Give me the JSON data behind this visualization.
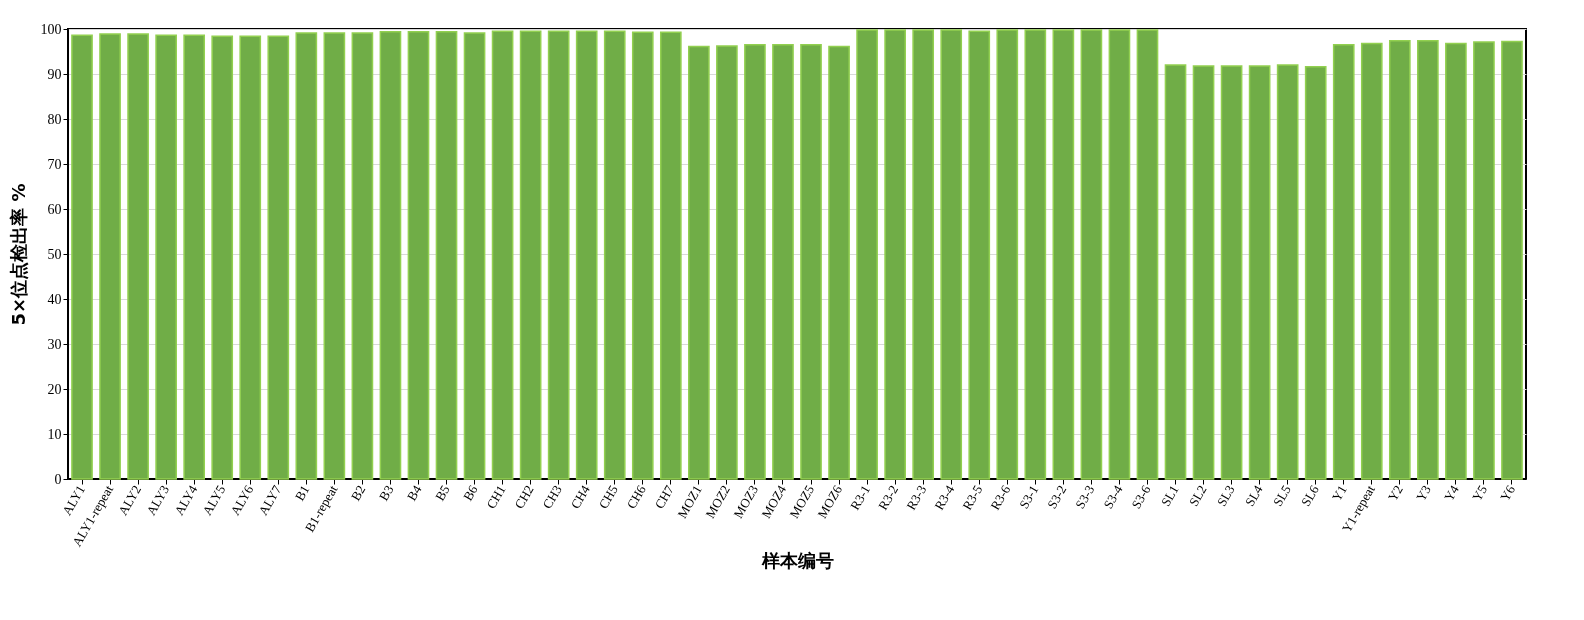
{
  "chart_data": {
    "type": "bar",
    "xlabel": "样本编号",
    "ylabel": "5×位点检出率 %",
    "categories": [
      "ALY1",
      "ALY1-repeat",
      "ALY2",
      "ALY3",
      "ALY4",
      "ALY5",
      "ALY6",
      "ALY7",
      "B1",
      "B1-repeat",
      "B2",
      "B3",
      "B4",
      "B5",
      "B6",
      "CH1",
      "CH2",
      "CH3",
      "CH4",
      "CH5",
      "CH6",
      "CH7",
      "MOZ1",
      "MOZ2",
      "MOZ3",
      "MOZ4",
      "MOZ5",
      "MOZ6",
      "R3-1",
      "R3-2",
      "R3-3",
      "R3-4",
      "R3-5",
      "R3-6",
      "S3-1",
      "S3-2",
      "S3-3",
      "S3-4",
      "S3-6",
      "SL1",
      "SL2",
      "SL3",
      "SL4",
      "SL5",
      "SL6",
      "Y1",
      "Y1-repeat",
      "Y2",
      "Y3",
      "Y4",
      "Y5",
      "Y6"
    ],
    "values": [
      98.6,
      98.9,
      98.9,
      98.6,
      98.6,
      98.4,
      98.4,
      98.4,
      99.1,
      99.1,
      99.1,
      99.4,
      99.4,
      99.4,
      99.1,
      99.5,
      99.5,
      99.5,
      99.5,
      99.5,
      99.3,
      99.3,
      96.1,
      96.2,
      96.5,
      96.5,
      96.5,
      96.1,
      99.8,
      99.8,
      99.8,
      99.8,
      99.5,
      99.8,
      99.8,
      99.8,
      99.8,
      99.8,
      99.8,
      92.0,
      91.8,
      91.8,
      91.8,
      92.0,
      91.6,
      96.5,
      96.8,
      97.4,
      97.4,
      96.8,
      97.1,
      97.2
    ],
    "color": "#70ad47",
    "ylim": [
      0,
      100
    ],
    "yticks": [
      0,
      10,
      20,
      30,
      40,
      50,
      60,
      70,
      80,
      90,
      100
    ],
    "grid": "y"
  }
}
